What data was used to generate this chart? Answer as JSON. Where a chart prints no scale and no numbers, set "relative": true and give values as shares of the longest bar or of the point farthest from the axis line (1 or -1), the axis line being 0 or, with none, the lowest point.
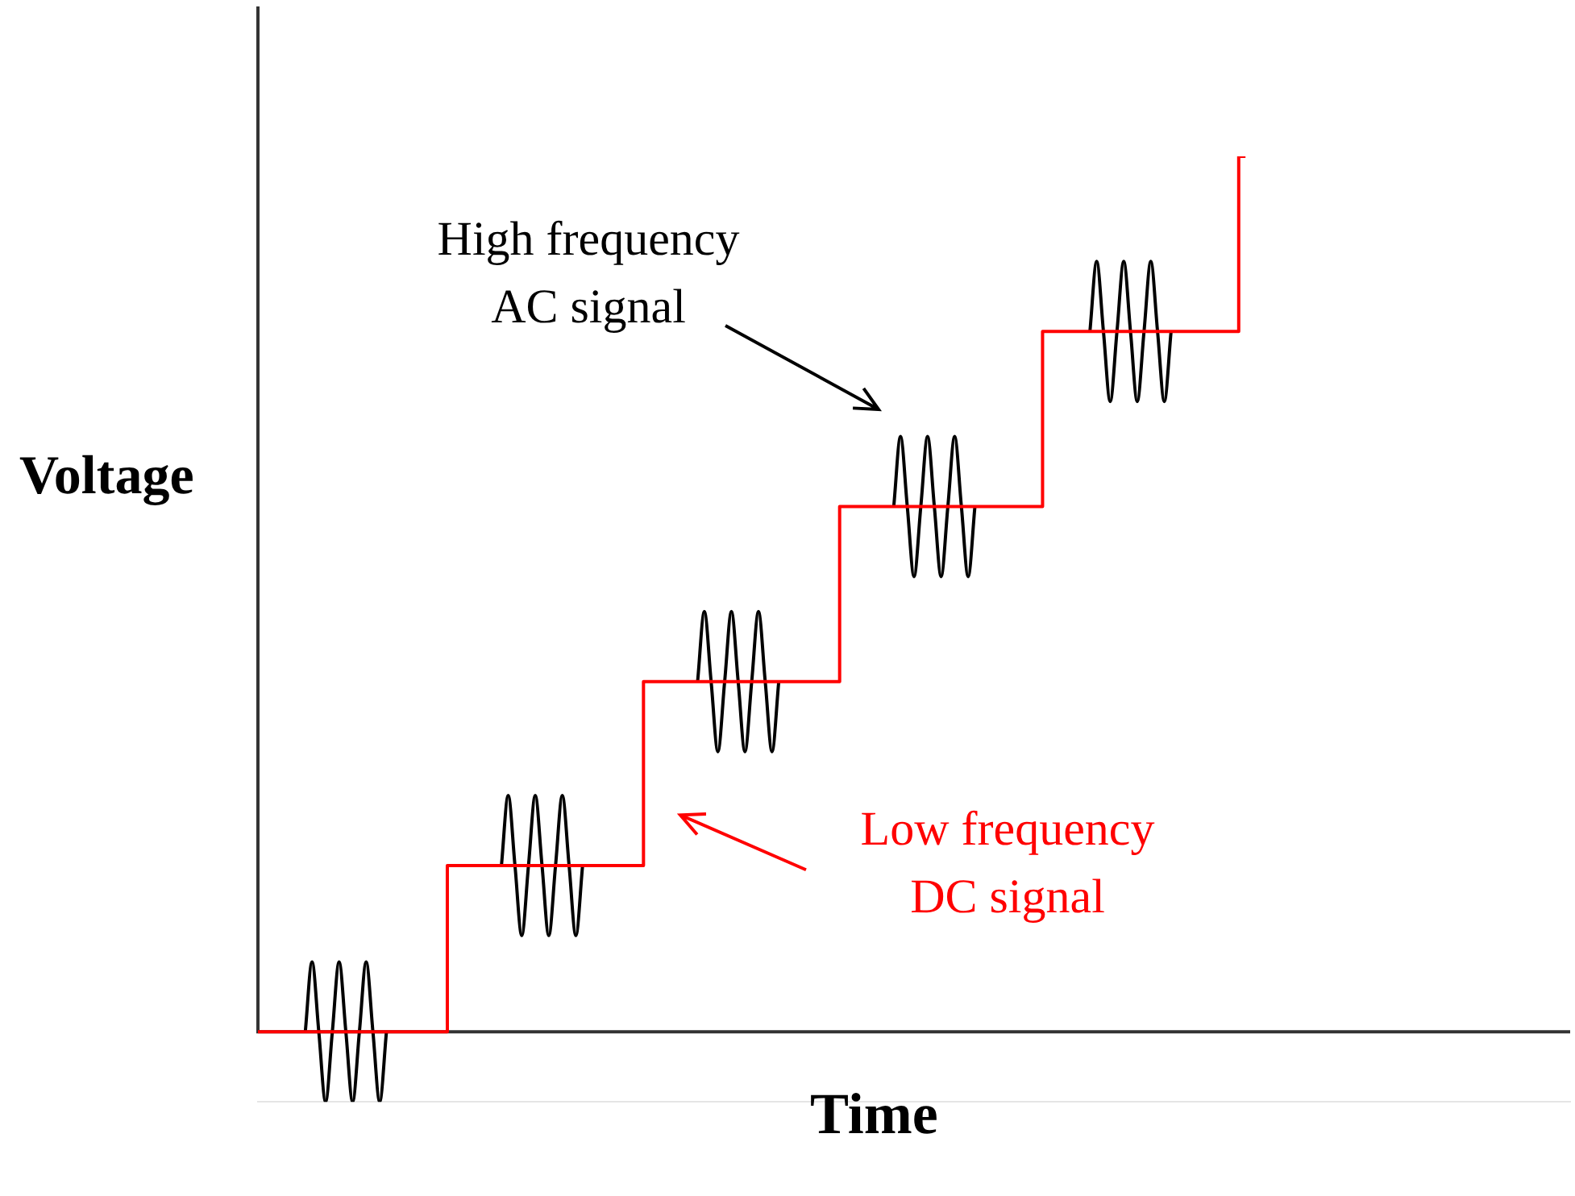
{
  "chart_data": {
    "type": "step",
    "relative": true,
    "xlabel": "Time",
    "ylabel": "Voltage",
    "legend": false,
    "annotations": [
      "High frequency AC signal",
      "Low frequency DC signal"
    ],
    "categories": [
      null,
      null,
      null,
      null,
      null,
      null,
      null,
      null,
      null,
      null,
      null,
      null,
      null,
      null,
      null,
      null,
      null,
      null,
      null,
      null,
      null,
      null,
      null,
      null,
      null,
      null,
      null,
      null,
      null,
      null,
      null,
      null,
      null,
      null,
      null,
      null,
      null,
      null,
      null,
      null,
      null,
      null,
      null,
      null,
      null,
      null,
      null,
      null,
      null,
      null,
      null,
      null,
      null,
      null,
      null,
      null,
      null,
      null,
      null,
      null,
      null,
      null,
      null,
      null,
      null,
      null,
      null,
      null,
      null,
      null,
      null,
      null,
      null,
      null,
      null,
      null,
      null,
      null,
      null,
      null,
      null,
      null,
      null,
      null,
      null,
      null,
      null,
      null,
      null,
      null,
      null,
      null,
      null,
      null,
      null,
      null,
      null,
      null,
      null,
      null,
      null,
      null,
      null,
      null,
      null,
      null,
      null,
      null,
      null,
      null,
      null,
      null,
      null,
      null,
      null,
      null,
      null,
      null,
      null,
      null,
      null,
      null,
      null,
      null,
      null,
      null,
      null,
      null,
      null,
      null,
      null,
      null,
      null,
      null,
      null,
      null,
      null,
      null,
      null,
      null,
      null,
      null,
      null,
      null,
      null,
      null,
      null,
      null,
      null,
      null,
      null,
      null,
      null,
      null,
      null,
      null,
      null,
      null,
      null,
      null,
      null,
      null,
      null,
      null,
      null,
      null,
      null,
      null,
      null,
      null,
      null,
      null,
      null,
      null,
      null,
      null,
      null,
      null,
      null,
      null,
      null,
      null,
      null,
      null,
      null,
      null,
      null,
      null,
      null,
      null,
      null,
      null,
      null,
      null,
      null
    ],
    "series": [
      {
        "color": "#ff0000",
        "values": [
          0,
          0,
          0,
          0,
          0,
          0,
          0,
          0,
          0,
          0,
          0,
          0,
          0,
          0,
          0,
          0,
          0,
          0,
          0,
          0,
          0,
          0,
          0,
          0,
          0,
          0,
          0,
          0,
          0,
          0.19,
          0.19,
          0.19,
          0.19,
          0.19,
          0.19,
          0.19,
          0.19,
          0.19,
          0.19,
          0.19,
          0.19,
          0.19,
          0.19,
          0.19,
          0.19,
          0.19,
          0.19,
          0.19,
          0.19,
          0.19,
          0.19,
          0.19,
          0.19,
          0.19,
          0.19,
          0.19,
          0.19,
          0.19,
          0.4,
          0.4,
          0.4,
          0.4,
          0.4,
          0.4,
          0.4,
          0.4,
          0.4,
          0.4,
          0.4,
          0.4,
          0.4,
          0.4,
          0.4,
          0.4,
          0.4,
          0.4,
          0.4,
          0.4,
          0.4,
          0.4,
          0.4,
          0.4,
          0.4,
          0.4,
          0.4,
          0.4,
          0.4,
          0.6,
          0.6,
          0.6,
          0.6,
          0.6,
          0.6,
          0.6,
          0.6,
          0.6,
          0.6,
          0.6,
          0.6,
          0.6,
          0.6,
          0.6,
          0.6,
          0.6,
          0.6,
          0.6,
          0.6,
          0.6,
          0.6,
          0.6,
          0.6,
          0.6,
          0.6,
          0.6,
          0.6,
          0.6,
          0.6,
          0.8,
          0.8,
          0.8,
          0.8,
          0.8,
          0.8,
          0.8,
          0.8,
          0.8,
          0.8,
          0.8,
          0.8,
          0.8,
          0.8,
          0.8,
          0.8,
          0.8,
          0.8,
          0.8,
          0.8,
          0.8,
          0.8,
          0.8,
          0.8,
          0.8,
          0.8,
          0.8,
          0.8,
          0.8,
          1,
          null,
          null,
          null,
          null,
          null,
          null,
          null,
          null,
          null,
          null,
          null,
          null,
          null,
          null,
          null,
          null,
          null,
          null,
          null,
          null,
          null,
          null,
          null,
          null,
          null,
          null,
          null,
          null,
          null,
          null,
          null,
          null,
          null,
          null,
          null,
          null,
          null,
          null,
          null,
          null,
          null,
          null,
          null,
          null,
          null,
          null,
          null,
          null
        ]
      },
      {
        "type": "line",
        "color": "#000000",
        "values": [
          null,
          null,
          null,
          null,
          null,
          null,
          null,
          0,
          0.08,
          0,
          -0.08,
          0,
          0.08,
          0,
          -0.08,
          0,
          0.08,
          0,
          -0.08,
          0,
          null,
          null,
          null,
          null,
          null,
          null,
          null,
          null,
          null,
          null,
          null,
          null,
          null,
          null,
          null,
          null,
          0.19,
          0.27,
          0.19,
          0.11,
          0.19,
          0.27,
          0.19,
          0.11,
          0.19,
          0.27,
          0.19,
          0.11,
          0.19,
          null,
          null,
          null,
          null,
          null,
          null,
          null,
          null,
          null,
          null,
          null,
          null,
          null,
          null,
          null,
          null,
          0.4,
          0.48,
          0.4,
          0.32,
          0.4,
          0.48,
          0.4,
          0.32,
          0.4,
          0.48,
          0.4,
          0.32,
          0.4,
          null,
          null,
          null,
          null,
          null,
          null,
          null,
          null,
          null,
          null,
          null,
          null,
          null,
          null,
          null,
          null,
          0.6,
          0.68,
          0.6,
          0.52,
          0.6,
          0.68,
          0.6,
          0.52,
          0.6,
          0.68,
          0.6,
          0.52,
          0.6,
          null,
          null,
          null,
          null,
          null,
          null,
          null,
          null,
          null,
          null,
          null,
          null,
          null,
          null,
          null,
          null,
          0.8,
          0.88,
          0.8,
          0.72,
          0.8,
          0.88,
          0.8,
          0.72,
          0.8,
          0.88,
          0.8,
          0.72,
          0.8,
          null,
          null,
          null,
          null,
          null,
          null,
          null,
          null,
          null,
          null,
          null,
          null,
          null,
          null,
          null,
          null,
          null,
          null,
          null,
          null,
          null,
          null,
          null,
          null,
          null,
          null,
          null,
          null,
          null,
          null,
          null,
          null,
          null,
          null,
          null,
          null,
          null,
          null,
          null,
          null,
          null,
          null,
          null,
          null,
          null,
          null,
          null,
          null,
          null,
          null,
          null,
          null,
          null,
          null,
          null,
          null,
          null,
          null,
          null
        ]
      }
    ]
  }
}
